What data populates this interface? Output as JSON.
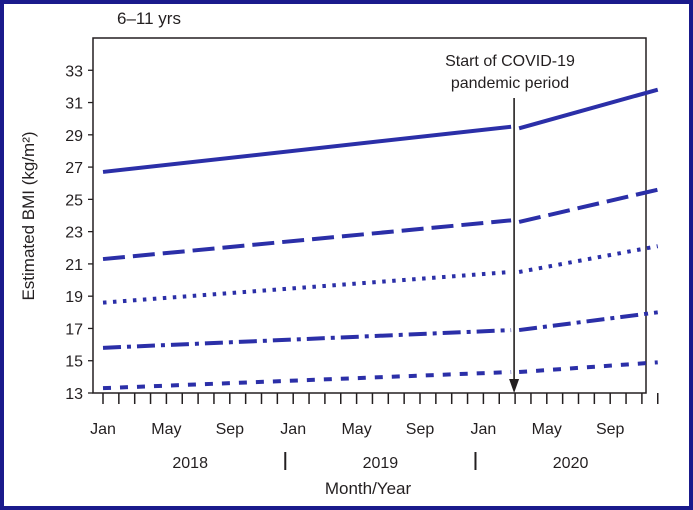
{
  "chart_data": {
    "type": "line",
    "title": "6–11 yrs",
    "xlabel": "Month/Year",
    "ylabel": "Estimated BMI (kg/m²)",
    "ylim": [
      13,
      35
    ],
    "y_ticks": [
      13,
      15,
      17,
      19,
      21,
      23,
      25,
      27,
      29,
      31,
      33
    ],
    "xlim": [
      "2018-01",
      "2020-12"
    ],
    "x_tick_labels": [
      {
        "month": "2018-01",
        "label": "Jan"
      },
      {
        "month": "2018-05",
        "label": "May"
      },
      {
        "month": "2018-09",
        "label": "Sep"
      },
      {
        "month": "2019-01",
        "label": "Jan"
      },
      {
        "month": "2019-05",
        "label": "May"
      },
      {
        "month": "2019-09",
        "label": "Sep"
      },
      {
        "month": "2020-01",
        "label": "Jan"
      },
      {
        "month": "2020-05",
        "label": "May"
      },
      {
        "month": "2020-09",
        "label": "Sep"
      }
    ],
    "year_labels": [
      "2018",
      "2019",
      "2020"
    ],
    "annotation": {
      "text": [
        "Start of COVID-19",
        "pandemic period"
      ],
      "month": "2020-03"
    },
    "grid": false,
    "legend": "none",
    "line_color": "#2b2fa8",
    "series": [
      {
        "style": "solid",
        "values": [
          {
            "x": "2018-01",
            "y": 26.7
          },
          {
            "x": "2020-03",
            "y": 29.5
          },
          {
            "x": "2020-03",
            "y": 29.4
          },
          {
            "x": "2020-12",
            "y": 31.8
          }
        ]
      },
      {
        "style": "dashed",
        "values": [
          {
            "x": "2018-01",
            "y": 21.3
          },
          {
            "x": "2020-03",
            "y": 23.7
          },
          {
            "x": "2020-03",
            "y": 23.6
          },
          {
            "x": "2020-12",
            "y": 25.6
          }
        ]
      },
      {
        "style": "dotted",
        "values": [
          {
            "x": "2018-01",
            "y": 18.6
          },
          {
            "x": "2020-03",
            "y": 20.5
          },
          {
            "x": "2020-03",
            "y": 20.5
          },
          {
            "x": "2020-12",
            "y": 22.1
          }
        ]
      },
      {
        "style": "dash-dot",
        "values": [
          {
            "x": "2018-01",
            "y": 15.8
          },
          {
            "x": "2020-03",
            "y": 16.9
          },
          {
            "x": "2020-03",
            "y": 16.9
          },
          {
            "x": "2020-12",
            "y": 18.0
          }
        ]
      },
      {
        "style": "short-dashed",
        "values": [
          {
            "x": "2018-01",
            "y": 13.3
          },
          {
            "x": "2020-03",
            "y": 14.3
          },
          {
            "x": "2020-03",
            "y": 14.3
          },
          {
            "x": "2020-12",
            "y": 14.9
          }
        ]
      }
    ]
  }
}
